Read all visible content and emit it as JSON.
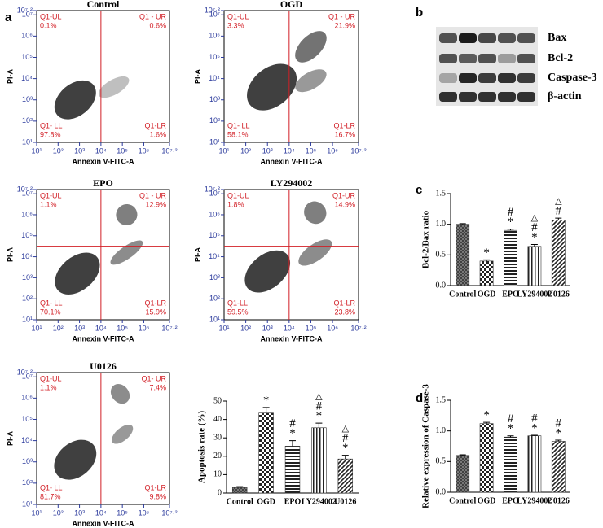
{
  "panel_labels": [
    "a",
    "b",
    "c",
    "d"
  ],
  "western_blot": {
    "proteins": [
      "Bax",
      "Bcl-2",
      "Caspase-3",
      "β-actin"
    ]
  },
  "chart_data": [
    {
      "type": "flow",
      "title": "Control",
      "xlabel": "Annexin V-FITC-A",
      "ylabel": "PI-A",
      "xlim": [
        1,
        7.2
      ],
      "ylim": [
        1,
        7.2
      ],
      "xticks": [
        {
          "value": 1,
          "label": "10¹"
        },
        {
          "value": 2,
          "label": "10²"
        },
        {
          "value": 3,
          "label": "10³"
        },
        {
          "value": 4,
          "label": "10⁴"
        },
        {
          "value": 5,
          "label": "10⁵"
        },
        {
          "value": 6,
          "label": "10⁶"
        },
        {
          "value": 7.2,
          "label": "10⁷·²"
        }
      ],
      "yticks": [
        {
          "value": 1,
          "label": "10¹"
        },
        {
          "value": 2,
          "label": "10²"
        },
        {
          "value": 3,
          "label": "10³"
        },
        {
          "value": 4,
          "label": "10⁴"
        },
        {
          "value": 5,
          "label": "10⁵"
        },
        {
          "value": 6,
          "label": "10⁶"
        },
        {
          "value": 7,
          "label": "10⁷"
        },
        {
          "value": 7.2,
          "label": "10⁷·²"
        }
      ],
      "gate": [
        4,
        4.5
      ],
      "quadrants": [
        "Q1-UL",
        "Q1 - UR",
        "Q1- LL",
        "Q1-LR"
      ],
      "values": [
        0.1,
        0.6,
        97.8,
        1.6
      ],
      "value_labels": [
        "0.1%",
        "0.6%",
        "97.8%",
        "1.6%"
      ]
    },
    {
      "type": "flow",
      "title": "OGD",
      "xlabel": "Annexin V-FITC-A",
      "ylabel": "PI-A",
      "xlim": [
        1,
        7.2
      ],
      "ylim": [
        1,
        7.2
      ],
      "xticks": [
        {
          "value": 1,
          "label": "10¹"
        },
        {
          "value": 2,
          "label": "10²"
        },
        {
          "value": 3,
          "label": "10³"
        },
        {
          "value": 4,
          "label": "10⁴"
        },
        {
          "value": 5,
          "label": "10⁵"
        },
        {
          "value": 6,
          "label": "10⁶"
        },
        {
          "value": 7.2,
          "label": "10⁷·²"
        }
      ],
      "yticks": [
        {
          "value": 1,
          "label": "10¹"
        },
        {
          "value": 2,
          "label": "10²"
        },
        {
          "value": 3,
          "label": "10³"
        },
        {
          "value": 4,
          "label": "10⁴"
        },
        {
          "value": 5,
          "label": "10⁵"
        },
        {
          "value": 6,
          "label": "10⁶"
        },
        {
          "value": 7,
          "label": "10⁷"
        },
        {
          "value": 7.2,
          "label": "10⁷·²"
        }
      ],
      "gate": [
        4,
        4.5
      ],
      "quadrants": [
        "Q1-UL",
        "Q1 - UR",
        "Q1- LL",
        "Q1-LR"
      ],
      "values": [
        3.3,
        21.9,
        58.1,
        16.7
      ],
      "value_labels": [
        "3.3%",
        "21.9%",
        "58.1%",
        "16.7%"
      ]
    },
    {
      "type": "flow",
      "title": "EPO",
      "xlabel": "Annexin V-FITC-A",
      "ylabel": "PI-A",
      "xlim": [
        1,
        7.2
      ],
      "ylim": [
        1,
        7.2
      ],
      "xticks": [
        {
          "value": 1,
          "label": "10¹"
        },
        {
          "value": 2,
          "label": "10²"
        },
        {
          "value": 3,
          "label": "10³"
        },
        {
          "value": 4,
          "label": "10⁴"
        },
        {
          "value": 5,
          "label": "10⁵"
        },
        {
          "value": 6,
          "label": "10⁶"
        },
        {
          "value": 7.2,
          "label": "10⁷·²"
        }
      ],
      "yticks": [
        {
          "value": 1,
          "label": "10¹"
        },
        {
          "value": 2,
          "label": "10²"
        },
        {
          "value": 3,
          "label": "10³"
        },
        {
          "value": 4,
          "label": "10⁴"
        },
        {
          "value": 5,
          "label": "10⁵"
        },
        {
          "value": 6,
          "label": "10⁶"
        },
        {
          "value": 7,
          "label": "10⁷"
        },
        {
          "value": 7.2,
          "label": "10⁷·²"
        }
      ],
      "gate": [
        4,
        4.5
      ],
      "quadrants": [
        "Q1-UL",
        "Q1 - UR",
        "Q1- LL",
        "Q1-LR"
      ],
      "values": [
        1.1,
        12.9,
        70.1,
        15.9
      ],
      "value_labels": [
        "1.1%",
        "12.9%",
        "70.1%",
        "15.9%"
      ]
    },
    {
      "type": "flow",
      "title": "LY294002",
      "xlabel": "Annexin V-FITC-A",
      "ylabel": "PI-A",
      "xlim": [
        1,
        7.2
      ],
      "ylim": [
        1,
        7.2
      ],
      "xticks": [
        {
          "value": 1,
          "label": "10¹"
        },
        {
          "value": 2,
          "label": "10²"
        },
        {
          "value": 3,
          "label": "10³"
        },
        {
          "value": 4,
          "label": "10⁴"
        },
        {
          "value": 5,
          "label": "10⁵"
        },
        {
          "value": 6,
          "label": "10⁶"
        },
        {
          "value": 7.2,
          "label": "10⁷·²"
        }
      ],
      "yticks": [
        {
          "value": 1,
          "label": "10¹"
        },
        {
          "value": 2,
          "label": "10²"
        },
        {
          "value": 3,
          "label": "10³"
        },
        {
          "value": 4,
          "label": "10⁴"
        },
        {
          "value": 5,
          "label": "10⁵"
        },
        {
          "value": 6,
          "label": "10⁶"
        },
        {
          "value": 7,
          "label": "10⁷"
        },
        {
          "value": 7.2,
          "label": "10⁷·²"
        }
      ],
      "gate": [
        4,
        4.5
      ],
      "quadrants": [
        "Q1-UL",
        "Q1-UR",
        "Q1-LL",
        "Q1-LR"
      ],
      "values": [
        1.8,
        14.9,
        59.5,
        23.8
      ],
      "value_labels": [
        "1.8%",
        "14.9%",
        "59.5%",
        "23.8%"
      ]
    },
    {
      "type": "flow",
      "title": "U0126",
      "xlabel": "Annexin V-FITC-A",
      "ylabel": "PI-A",
      "xlim": [
        1,
        7.2
      ],
      "ylim": [
        1,
        7.2
      ],
      "xticks": [
        {
          "value": 1,
          "label": "10¹"
        },
        {
          "value": 2,
          "label": "10²"
        },
        {
          "value": 3,
          "label": "10³"
        },
        {
          "value": 4,
          "label": "10⁴"
        },
        {
          "value": 5,
          "label": "10⁵"
        },
        {
          "value": 6,
          "label": "10⁶"
        },
        {
          "value": 7.2,
          "label": "10⁷·²"
        }
      ],
      "yticks": [
        {
          "value": 1,
          "label": "10¹"
        },
        {
          "value": 2,
          "label": "10²"
        },
        {
          "value": 3,
          "label": "10³"
        },
        {
          "value": 4,
          "label": "10⁴"
        },
        {
          "value": 5,
          "label": "10⁵"
        },
        {
          "value": 6,
          "label": "10⁶"
        },
        {
          "value": 7,
          "label": "10⁷"
        },
        {
          "value": 7.2,
          "label": "10⁷·²"
        }
      ],
      "gate": [
        4,
        4.5
      ],
      "quadrants": [
        "Q1-UL",
        "Q1- UR",
        "Q1- LL",
        "Q1-LR"
      ],
      "values": [
        1.1,
        7.4,
        81.7,
        9.8
      ],
      "value_labels": [
        "1.1%",
        "7.4%",
        "81.7%",
        "9.8%"
      ]
    },
    {
      "type": "bar",
      "ylabel": "Apoptosis rate (%)",
      "categories": [
        "Control",
        "OGD",
        "EPO",
        "LY294002",
        "U0126"
      ],
      "values": [
        3,
        43.5,
        25.5,
        35.5,
        18.5
      ],
      "errors": [
        0.5,
        3,
        3,
        2.5,
        2
      ],
      "ylim": [
        0,
        50
      ],
      "yticks": [
        0,
        10,
        20,
        30,
        40,
        50
      ],
      "patterns": [
        "crosshatch",
        "checker",
        "horizontal",
        "vertical",
        "diagonal"
      ],
      "significance": [
        [],
        [
          "*"
        ],
        [
          "#",
          "*"
        ],
        [
          "△",
          "#",
          "*"
        ],
        [
          "△",
          "#",
          "*"
        ]
      ]
    },
    {
      "type": "bar",
      "ylabel": "Bcl-2/Bax ratio",
      "categories": [
        "Control",
        "OGD",
        "EPO",
        "LY294002",
        "U0126"
      ],
      "values": [
        1.0,
        0.4,
        0.9,
        0.64,
        1.07
      ],
      "errors": [
        0.01,
        0.02,
        0.02,
        0.03,
        0.03
      ],
      "ylim": [
        0,
        1.5
      ],
      "yticks": [
        {
          "value": 0,
          "label": "0.0"
        },
        {
          "value": 0.5,
          "label": "0.5"
        },
        {
          "value": 1,
          "label": "1.0"
        },
        {
          "value": 1.5,
          "label": "1.5"
        }
      ],
      "patterns": [
        "crosshatch",
        "checker",
        "horizontal",
        "vertical",
        "diagonal"
      ],
      "significance": [
        [],
        [
          "*"
        ],
        [
          "#",
          "*"
        ],
        [
          "△",
          "#",
          "*"
        ],
        [
          "△",
          "#"
        ]
      ]
    },
    {
      "type": "bar",
      "ylabel": "Relative expression of Caspase-3",
      "categories": [
        "Control",
        "OGD",
        "EPO",
        "LY294002",
        "U0126"
      ],
      "values": [
        0.6,
        1.12,
        0.9,
        0.92,
        0.83
      ],
      "errors": [
        0.01,
        0.02,
        0.02,
        0.01,
        0.02
      ],
      "ylim": [
        0,
        1.5
      ],
      "yticks": [
        {
          "value": 0,
          "label": "0.0"
        },
        {
          "value": 0.5,
          "label": "0.5"
        },
        {
          "value": 1,
          "label": "1.0"
        },
        {
          "value": 1.5,
          "label": "1.5"
        }
      ],
      "patterns": [
        "crosshatch",
        "checker",
        "horizontal",
        "vertical",
        "diagonal"
      ],
      "significance": [
        [],
        [
          "*"
        ],
        [
          "#",
          "*"
        ],
        [
          "#",
          "*"
        ],
        [
          "#",
          "*"
        ]
      ]
    }
  ]
}
